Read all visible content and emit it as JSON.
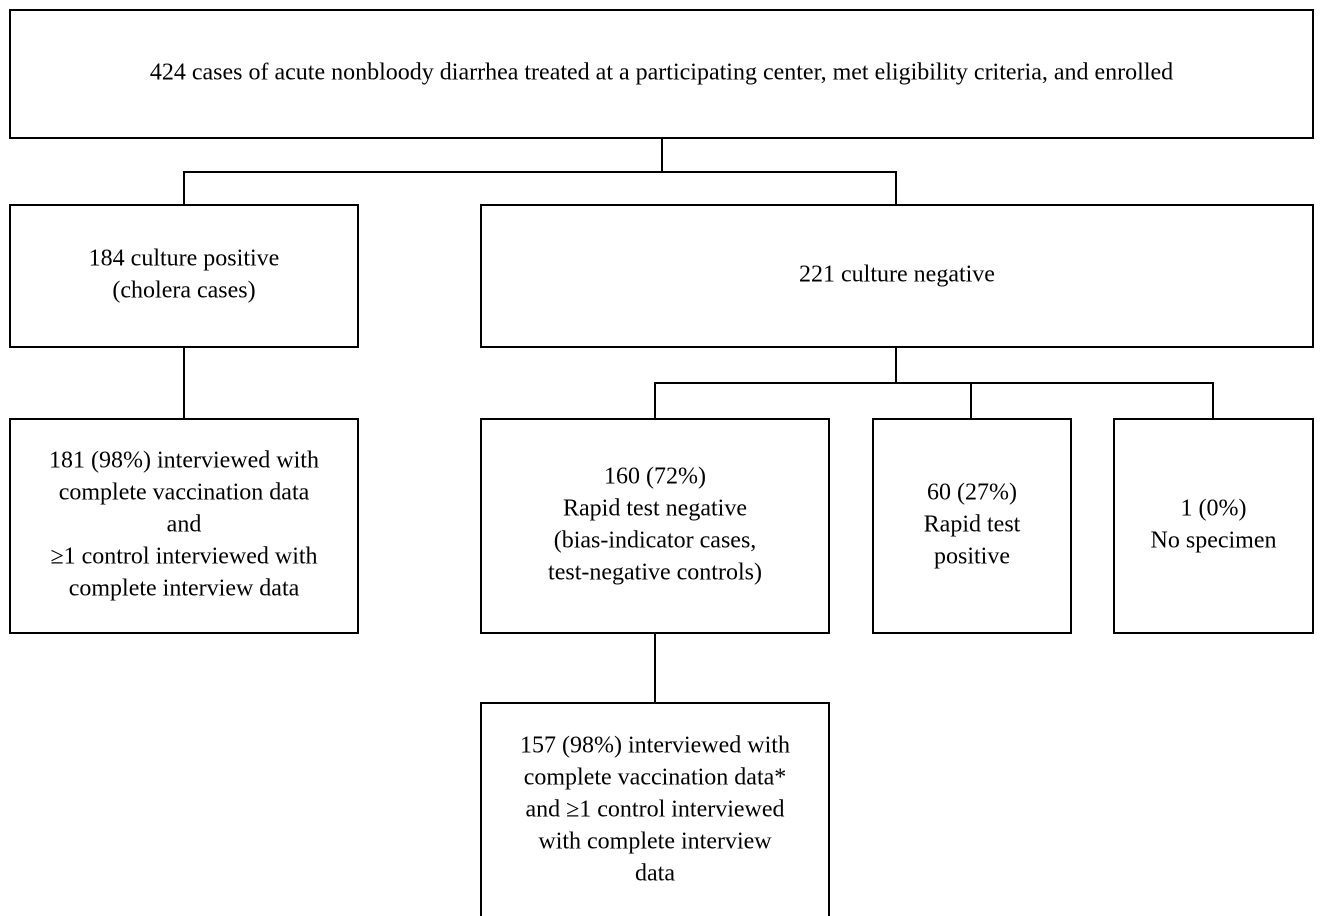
{
  "nodes": [
    {
      "lines": [
        "424 cases of acute nonbloody diarrhea treated at a participating center, met eligibility criteria, and enrolled"
      ]
    },
    {
      "lines": [
        "184 culture positive",
        "(cholera cases)"
      ]
    },
    {
      "lines": [
        "221 culture negative"
      ]
    },
    {
      "lines": [
        "181 (98%) interviewed with",
        "complete vaccination data",
        "and",
        "≥1 control interviewed with",
        "complete interview data"
      ]
    },
    {
      "lines": [
        "160 (72%)",
        "Rapid test negative",
        "(bias-indicator cases,",
        "test-negative controls)"
      ]
    },
    {
      "lines": [
        "60 (27%)",
        "Rapid test",
        "positive"
      ]
    },
    {
      "lines": [
        "1 (0%)",
        "No specimen"
      ]
    },
    {
      "lines": [
        "157 (98%) interviewed with",
        "complete vaccination data*",
        "and ≥1 control interviewed",
        "with complete interview",
        "data"
      ]
    }
  ]
}
